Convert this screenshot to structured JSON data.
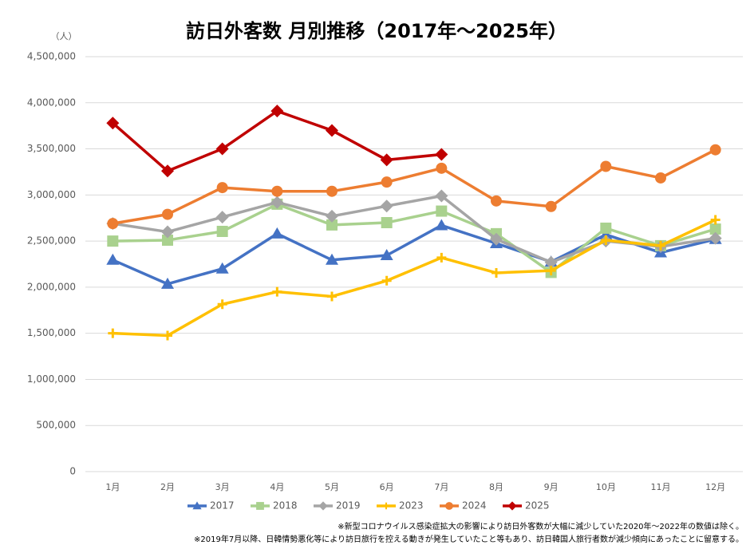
{
  "chart_data": {
    "type": "line",
    "title": "訪日外客数 月別推移（2017年～2025年）",
    "y_unit": "（人）",
    "notes": [
      "※新型コロナウイルス感染症拡大の影響により訪日外客数が大幅に減少していた2020年～2022年の数値は除く。",
      "※2019年7月以降、日韓情勢悪化等により訪日旅行を控える動きが発生していたこと等もあり、訪日韓国人旅行者数が減少傾向にあったことに留意する。"
    ],
    "categories": [
      "1月",
      "2月",
      "3月",
      "4月",
      "5月",
      "6月",
      "7月",
      "8月",
      "9月",
      "10月",
      "11月",
      "12月"
    ],
    "series": [
      {
        "name": "2017",
        "color": "#4472c4",
        "marker": "triangle",
        "values": [
          2295000,
          2035000,
          2200000,
          2580000,
          2295000,
          2345000,
          2670000,
          2475000,
          2275000,
          2570000,
          2375000,
          2520000
        ]
      },
      {
        "name": "2018",
        "color": "#a9d18e",
        "marker": "square",
        "values": [
          2500000,
          2510000,
          2605000,
          2900000,
          2675000,
          2700000,
          2825000,
          2580000,
          2160000,
          2640000,
          2450000,
          2630000
        ]
      },
      {
        "name": "2019",
        "color": "#a5a5a5",
        "marker": "diamond",
        "values": [
          2690000,
          2600000,
          2760000,
          2920000,
          2770000,
          2880000,
          2990000,
          2520000,
          2270000,
          2500000,
          2440000,
          2530000
        ]
      },
      {
        "name": "2023",
        "color": "#ffc000",
        "marker": "plus",
        "values": [
          1500000,
          1475000,
          1815000,
          1950000,
          1900000,
          2070000,
          2320000,
          2155000,
          2180000,
          2510000,
          2450000,
          2730000
        ]
      },
      {
        "name": "2024",
        "color": "#ed7d31",
        "marker": "circle",
        "values": [
          2690000,
          2790000,
          3080000,
          3040000,
          3040000,
          3140000,
          3290000,
          2935000,
          2875000,
          3310000,
          3185000,
          3490000
        ]
      },
      {
        "name": "2025",
        "color": "#c00000",
        "marker": "diamond",
        "values": [
          3780000,
          3260000,
          3500000,
          3910000,
          3700000,
          3380000,
          3440000,
          null,
          null,
          null,
          null,
          null
        ]
      }
    ],
    "ylim": [
      0,
      4500000
    ],
    "yticks": [
      0,
      {
        "value": 500000,
        "label": "500,000"
      },
      {
        "value": 1000000,
        "label": "1,000,000"
      },
      {
        "value": 1500000,
        "label": "1,500,000"
      },
      {
        "value": 2000000,
        "label": "2,000,000"
      },
      {
        "value": 2500000,
        "label": "2,500,000"
      },
      {
        "value": 3000000,
        "label": "3,000,000"
      },
      {
        "value": 3500000,
        "label": "3,500,000"
      },
      {
        "value": 4000000,
        "label": "4,000,000"
      },
      {
        "value": 4500000,
        "label": "4,500,000"
      }
    ],
    "grid": true,
    "legend": "bottom"
  }
}
